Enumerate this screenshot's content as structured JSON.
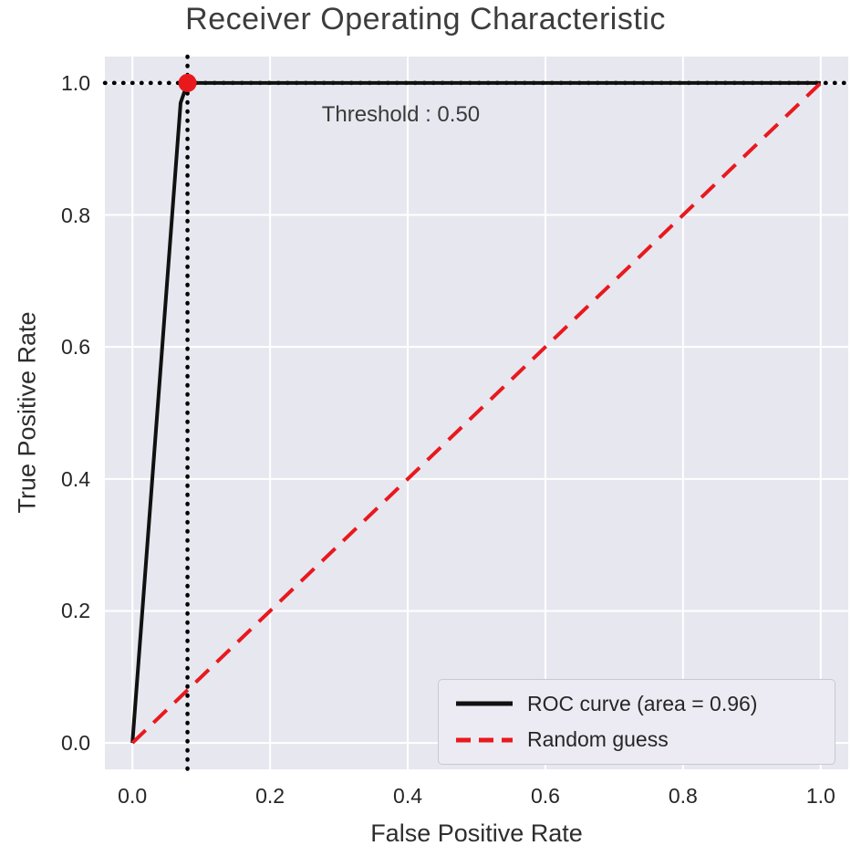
{
  "title": "Receiver Operating Characteristic",
  "colors": {
    "plot_bg": "#e7e7f0",
    "grid": "#ffffff",
    "roc_line": "#111111",
    "random_line": "#e8191d",
    "marker": "#e8191d",
    "reference": "#000000",
    "text": "#3d3d3d",
    "tick_text": "#262626"
  },
  "chart_data": {
    "type": "line",
    "title": "Receiver Operating Characteristic",
    "xlabel": "False Positive Rate",
    "ylabel": "True Positive Rate",
    "xlim": [
      -0.04,
      1.04
    ],
    "ylim": [
      -0.04,
      1.04
    ],
    "xticks": [
      0.0,
      0.2,
      0.4,
      0.6,
      0.8,
      1.0
    ],
    "yticks": [
      0.0,
      0.2,
      0.4,
      0.6,
      0.8,
      1.0
    ],
    "grid": true,
    "legend_position": "lower right",
    "series": [
      {
        "name": "ROC curve (area = 0.96)",
        "color": "#111111",
        "style": "solid",
        "width": 4,
        "points": [
          [
            0.0,
            0.0
          ],
          [
            0.07,
            0.97
          ],
          [
            0.08,
            1.0
          ],
          [
            1.0,
            1.0
          ]
        ]
      },
      {
        "name": "Random guess",
        "color": "#e8191d",
        "style": "dashed",
        "width": 4,
        "points": [
          [
            0.0,
            0.0
          ],
          [
            1.0,
            1.0
          ]
        ]
      }
    ],
    "reference_lines": [
      {
        "axis": "y",
        "value": 1.0,
        "style": "dotted",
        "color": "#000000"
      },
      {
        "axis": "x",
        "value": 0.08,
        "style": "dotted",
        "color": "#000000"
      }
    ],
    "marker": {
      "x": 0.08,
      "y": 1.0,
      "color": "#e8191d",
      "radius": 10
    },
    "annotation": {
      "text": "Threshold : 0.50",
      "x": 0.275,
      "y": 0.952
    },
    "auc": 0.96,
    "threshold": 0.5
  },
  "legend": {
    "entries": [
      {
        "label": "ROC curve (area = 0.96)",
        "color": "#111111",
        "style": "solid"
      },
      {
        "label": "Random guess",
        "color": "#e8191d",
        "style": "dashed"
      }
    ]
  }
}
